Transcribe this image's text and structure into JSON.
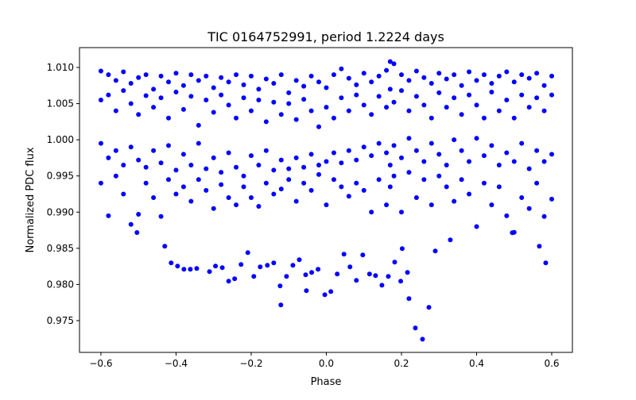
{
  "chart_data": {
    "type": "scatter",
    "title": "TIC 0164752991, period 1.2224 days",
    "xlabel": "Phase",
    "ylabel": "Normalized PDC flux",
    "xlim": [
      -0.657,
      0.655
    ],
    "ylim": [
      0.97061,
      1.01274
    ],
    "xticks": [
      -0.6,
      -0.4,
      -0.2,
      0.0,
      0.2,
      0.4,
      0.6
    ],
    "xtick_labels": [
      "−0.6",
      "−0.4",
      "−0.2",
      "0.0",
      "0.2",
      "0.4",
      "0.6"
    ],
    "yticks": [
      0.975,
      0.98,
      0.985,
      0.99,
      0.995,
      1.0,
      1.005,
      1.01
    ],
    "ytick_labels": [
      "0.975",
      "0.980",
      "0.985",
      "0.990",
      "0.995",
      "1.000",
      "1.005",
      "1.010"
    ],
    "grid": false,
    "marker_color": "#0000ff",
    "series": [
      {
        "name": "flux",
        "points": [
          [
            -0.6,
            1.0095
          ],
          [
            -0.6,
            1.0055
          ],
          [
            -0.6,
            0.9995
          ],
          [
            -0.6,
            0.994
          ],
          [
            -0.58,
            1.009
          ],
          [
            -0.58,
            1.0062
          ],
          [
            -0.58,
            0.9975
          ],
          [
            -0.58,
            0.9895
          ],
          [
            -0.56,
            1.0082
          ],
          [
            -0.56,
            1.004
          ],
          [
            -0.56,
            0.9985
          ],
          [
            -0.56,
            0.995
          ],
          [
            -0.54,
            1.0094
          ],
          [
            -0.54,
            1.0068
          ],
          [
            -0.54,
            0.9965
          ],
          [
            -0.54,
            0.9925
          ],
          [
            -0.52,
            1.0078
          ],
          [
            -0.52,
            1.005
          ],
          [
            -0.52,
            0.999
          ],
          [
            -0.52,
            0.9883
          ],
          [
            -0.5,
            1.0086
          ],
          [
            -0.5,
            1.0035
          ],
          [
            -0.5,
            0.9972
          ],
          [
            -0.5,
            0.9897
          ],
          [
            -0.48,
            1.009
          ],
          [
            -0.48,
            1.0061
          ],
          [
            -0.48,
            0.9962
          ],
          [
            -0.48,
            0.994
          ],
          [
            -0.46,
            1.007
          ],
          [
            -0.46,
            1.0045
          ],
          [
            -0.46,
            0.9985
          ],
          [
            -0.46,
            0.992
          ],
          [
            -0.44,
            1.0088
          ],
          [
            -0.44,
            1.0058
          ],
          [
            -0.44,
            0.9968
          ],
          [
            -0.44,
            0.9894
          ],
          [
            -0.42,
            1.008
          ],
          [
            -0.42,
            1.003
          ],
          [
            -0.42,
            0.9992
          ],
          [
            -0.42,
            0.9945
          ],
          [
            -0.4,
            1.0092
          ],
          [
            -0.4,
            1.0066
          ],
          [
            -0.4,
            0.9958
          ],
          [
            -0.4,
            0.9925
          ],
          [
            -0.38,
            1.0075
          ],
          [
            -0.38,
            1.0042
          ],
          [
            -0.38,
            0.998
          ],
          [
            -0.38,
            0.9935
          ],
          [
            -0.36,
            1.009
          ],
          [
            -0.36,
            1.006
          ],
          [
            -0.36,
            0.9965
          ],
          [
            -0.36,
            0.9915
          ],
          [
            -0.34,
            1.0082
          ],
          [
            -0.34,
            1.002
          ],
          [
            -0.34,
            0.9995
          ],
          [
            -0.34,
            0.9945
          ],
          [
            -0.32,
            1.0088
          ],
          [
            -0.32,
            1.0055
          ],
          [
            -0.32,
            0.996
          ],
          [
            -0.32,
            0.993
          ],
          [
            -0.3,
            1.0072
          ],
          [
            -0.3,
            1.0038
          ],
          [
            -0.3,
            0.9975
          ],
          [
            -0.3,
            0.9905
          ],
          [
            -0.28,
            1.0086
          ],
          [
            -0.28,
            1.0062
          ],
          [
            -0.28,
            0.9955
          ],
          [
            -0.28,
            0.9938
          ],
          [
            -0.26,
            1.008
          ],
          [
            -0.26,
            1.0048
          ],
          [
            -0.26,
            0.9982
          ],
          [
            -0.26,
            0.992
          ],
          [
            -0.24,
            1.009
          ],
          [
            -0.24,
            1.003
          ],
          [
            -0.24,
            0.9962
          ],
          [
            -0.24,
            0.991
          ],
          [
            -0.22,
            1.0076
          ],
          [
            -0.22,
            1.0058
          ],
          [
            -0.22,
            0.995
          ],
          [
            -0.22,
            0.9935
          ],
          [
            -0.2,
            1.0088
          ],
          [
            -0.2,
            1.004
          ],
          [
            -0.2,
            0.9978
          ],
          [
            -0.2,
            0.992
          ],
          [
            -0.18,
            1.007
          ],
          [
            -0.18,
            1.0055
          ],
          [
            -0.18,
            0.9965
          ],
          [
            -0.18,
            0.9908
          ],
          [
            -0.16,
            1.0084
          ],
          [
            -0.16,
            1.0025
          ],
          [
            -0.16,
            0.9985
          ],
          [
            -0.16,
            0.994
          ],
          [
            -0.14,
            1.0078
          ],
          [
            -0.14,
            1.0052
          ],
          [
            -0.14,
            0.9958
          ],
          [
            -0.14,
            0.9925
          ],
          [
            -0.12,
            1.009
          ],
          [
            -0.12,
            1.0035
          ],
          [
            -0.12,
            0.9972
          ],
          [
            -0.12,
            0.9932
          ],
          [
            -0.1,
            1.0065
          ],
          [
            -0.1,
            1.005
          ],
          [
            -0.1,
            0.996
          ],
          [
            -0.1,
            0.9945
          ],
          [
            -0.08,
            1.0082
          ],
          [
            -0.08,
            1.0028
          ],
          [
            -0.08,
            0.9975
          ],
          [
            -0.08,
            0.9915
          ],
          [
            -0.06,
            1.0074
          ],
          [
            -0.06,
            1.0056
          ],
          [
            -0.06,
            0.9962
          ],
          [
            -0.06,
            0.994
          ],
          [
            -0.04,
            1.0088
          ],
          [
            -0.04,
            1.004
          ],
          [
            -0.04,
            0.998
          ],
          [
            -0.04,
            0.993
          ],
          [
            -0.02,
            1.008
          ],
          [
            -0.02,
            1.0018
          ],
          [
            -0.02,
            0.9965
          ],
          [
            -0.02,
            0.9952
          ],
          [
            0.0,
            1.0072
          ],
          [
            0.0,
            1.0045
          ],
          [
            0.0,
            0.997
          ],
          [
            0.0,
            0.991
          ],
          [
            0.02,
            1.009
          ],
          [
            0.02,
            1.003
          ],
          [
            0.02,
            0.9982
          ],
          [
            0.02,
            0.9945
          ],
          [
            0.04,
            1.0098
          ],
          [
            0.04,
            1.0058
          ],
          [
            0.04,
            0.9968
          ],
          [
            0.04,
            0.9935
          ],
          [
            0.06,
            1.0085
          ],
          [
            0.06,
            1.004
          ],
          [
            0.06,
            0.9985
          ],
          [
            0.06,
            0.9922
          ],
          [
            0.08,
            1.0076
          ],
          [
            0.08,
            1.0062
          ],
          [
            0.08,
            0.9972
          ],
          [
            0.08,
            0.994
          ],
          [
            0.1,
            1.0092
          ],
          [
            0.1,
            1.0048
          ],
          [
            0.1,
            0.999
          ],
          [
            0.1,
            0.993
          ],
          [
            0.12,
            1.008
          ],
          [
            0.12,
            1.0035
          ],
          [
            0.12,
            0.9978
          ],
          [
            0.12,
            0.99
          ],
          [
            0.14,
            1.0088
          ],
          [
            0.14,
            1.006
          ],
          [
            0.14,
            0.9995
          ],
          [
            0.14,
            0.9945
          ],
          [
            0.16,
            1.0096
          ],
          [
            0.16,
            1.0045
          ],
          [
            0.16,
            0.9982
          ],
          [
            0.16,
            0.991
          ],
          [
            0.17,
            1.0108
          ],
          [
            0.17,
            1.007
          ],
          [
            0.17,
            0.9965
          ],
          [
            0.17,
            0.9935
          ],
          [
            0.18,
            1.0105
          ],
          [
            0.18,
            1.0052
          ],
          [
            0.18,
            0.9992
          ],
          [
            0.18,
            0.995
          ],
          [
            0.2,
            1.009
          ],
          [
            0.2,
            1.0068
          ],
          [
            0.2,
            0.9975
          ],
          [
            0.2,
            0.99
          ],
          [
            0.22,
            1.0082
          ],
          [
            0.22,
            1.004
          ],
          [
            0.22,
            1.0002
          ],
          [
            0.22,
            0.9955
          ],
          [
            0.24,
            1.0095
          ],
          [
            0.24,
            1.006
          ],
          [
            0.24,
            0.9985
          ],
          [
            0.24,
            0.992
          ],
          [
            0.26,
            1.0086
          ],
          [
            0.26,
            1.0048
          ],
          [
            0.26,
            0.997
          ],
          [
            0.26,
            0.9945
          ],
          [
            0.28,
            1.0078
          ],
          [
            0.28,
            1.003
          ],
          [
            0.28,
            0.9995
          ],
          [
            0.28,
            0.991
          ],
          [
            0.3,
            1.0092
          ],
          [
            0.3,
            1.0065
          ],
          [
            0.3,
            0.998
          ],
          [
            0.3,
            0.995
          ],
          [
            0.32,
            1.0084
          ],
          [
            0.32,
            1.0045
          ],
          [
            0.32,
            0.9965
          ],
          [
            0.32,
            0.9935
          ],
          [
            0.34,
            1.009
          ],
          [
            0.34,
            1.0058
          ],
          [
            0.34,
            1.0
          ],
          [
            0.34,
            0.9915
          ],
          [
            0.36,
            1.0075
          ],
          [
            0.36,
            1.0035
          ],
          [
            0.36,
            0.9985
          ],
          [
            0.36,
            0.9945
          ],
          [
            0.38,
            1.0094
          ],
          [
            0.38,
            1.0062
          ],
          [
            0.38,
            0.997
          ],
          [
            0.38,
            0.9925
          ],
          [
            0.4,
            1.0082
          ],
          [
            0.4,
            1.0048
          ],
          [
            0.4,
            1.0002
          ],
          [
            0.4,
            0.988
          ],
          [
            0.42,
            1.009
          ],
          [
            0.42,
            1.003
          ],
          [
            0.42,
            0.9978
          ],
          [
            0.42,
            0.994
          ],
          [
            0.44,
            1.0078
          ],
          [
            0.44,
            1.0066
          ],
          [
            0.44,
            0.9992
          ],
          [
            0.44,
            0.991
          ],
          [
            0.46,
            1.0088
          ],
          [
            0.46,
            1.004
          ],
          [
            0.46,
            0.9965
          ],
          [
            0.46,
            0.9935
          ],
          [
            0.48,
            1.0094
          ],
          [
            0.48,
            1.0055
          ],
          [
            0.48,
            0.9982
          ],
          [
            0.48,
            0.9895
          ],
          [
            0.5,
            1.008
          ],
          [
            0.5,
            1.003
          ],
          [
            0.5,
            0.997
          ],
          [
            0.5,
            0.9872
          ],
          [
            0.52,
            1.009
          ],
          [
            0.52,
            1.0062
          ],
          [
            0.52,
            0.9995
          ],
          [
            0.52,
            0.992
          ],
          [
            0.54,
            1.0085
          ],
          [
            0.54,
            1.0045
          ],
          [
            0.54,
            0.996
          ],
          [
            0.54,
            0.9905
          ],
          [
            0.56,
            1.0092
          ],
          [
            0.56,
            1.0058
          ],
          [
            0.56,
            0.9985
          ],
          [
            0.56,
            0.994
          ],
          [
            0.58,
            1.0075
          ],
          [
            0.58,
            1.004
          ],
          [
            0.58,
            0.997
          ],
          [
            0.58,
            0.9894
          ],
          [
            0.6,
            1.0088
          ],
          [
            0.6,
            1.0062
          ],
          [
            0.6,
            0.998
          ],
          [
            0.6,
            0.9918
          ],
          [
            -0.504,
            0.98718
          ],
          [
            -0.43,
            0.98528
          ],
          [
            -0.413,
            0.98298
          ],
          [
            -0.396,
            0.98254
          ],
          [
            -0.379,
            0.9821
          ],
          [
            -0.362,
            0.9821
          ],
          [
            -0.345,
            0.98221
          ],
          [
            -0.311,
            0.98178
          ],
          [
            -0.295,
            0.98254
          ],
          [
            -0.277,
            0.98232
          ],
          [
            -0.26,
            0.98045
          ],
          [
            -0.244,
            0.98078
          ],
          [
            -0.227,
            0.98276
          ],
          [
            -0.209,
            0.9844
          ],
          [
            -0.193,
            0.98111
          ],
          [
            -0.176,
            0.98243
          ],
          [
            -0.157,
            0.98265
          ],
          [
            -0.14,
            0.98298
          ],
          [
            -0.123,
            0.9798
          ],
          [
            -0.121,
            0.97716
          ],
          [
            -0.106,
            0.98111
          ],
          [
            -0.089,
            0.98265
          ],
          [
            -0.072,
            0.98342
          ],
          [
            -0.055,
            0.98133
          ],
          [
            -0.053,
            0.97914
          ],
          [
            -0.039,
            0.98166
          ],
          [
            -0.022,
            0.9821
          ],
          [
            -0.004,
            0.97858
          ],
          [
            0.012,
            0.97902
          ],
          [
            0.029,
            0.98144
          ],
          [
            0.047,
            0.98419
          ],
          [
            0.063,
            0.98243
          ],
          [
            0.08,
            0.98056
          ],
          [
            0.097,
            0.98408
          ],
          [
            0.115,
            0.98144
          ],
          [
            0.131,
            0.98122
          ],
          [
            0.148,
            0.9799
          ],
          [
            0.165,
            0.98111
          ],
          [
            0.182,
            0.98309
          ],
          [
            0.198,
            0.98045
          ],
          [
            0.202,
            0.98495
          ],
          [
            0.216,
            0.98166
          ],
          [
            0.22,
            0.97804
          ],
          [
            0.237,
            0.97398
          ],
          [
            0.256,
            0.97243
          ],
          [
            0.273,
            0.97683
          ],
          [
            0.29,
            0.98462
          ],
          [
            0.33,
            0.98616
          ],
          [
            0.495,
            0.98715
          ],
          [
            0.567,
            0.98528
          ],
          [
            0.584,
            0.98298
          ]
        ]
      }
    ]
  }
}
